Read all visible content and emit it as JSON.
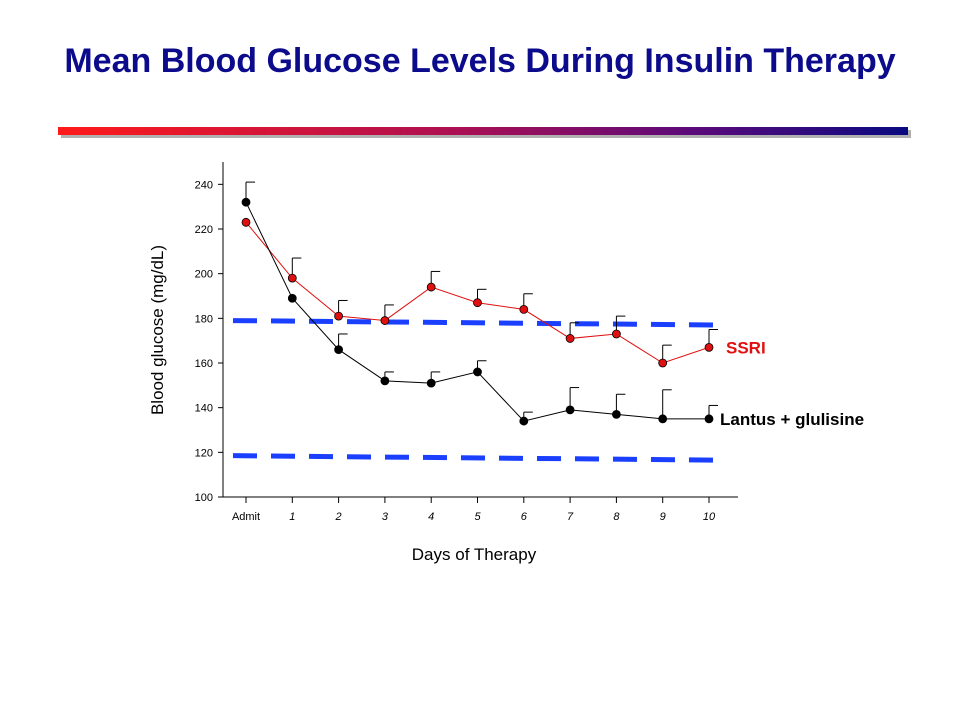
{
  "slide": {
    "title": "Mean Blood Glucose Levels During Insulin Therapy"
  },
  "chart_data": {
    "type": "line",
    "title": "",
    "xlabel": "Days of Therapy",
    "ylabel": "Blood glucose (mg/dL)",
    "ylim": [
      100,
      250
    ],
    "yticks": [
      100,
      120,
      140,
      160,
      180,
      200,
      220,
      240
    ],
    "categories": [
      "Admit",
      "1",
      "2",
      "3",
      "4",
      "5",
      "6",
      "7",
      "8",
      "9",
      "10"
    ],
    "grid": false,
    "series": [
      {
        "name": "SSRI",
        "color": "#e01010",
        "marker_color": "#e01010",
        "x_index": [
          0,
          1,
          2,
          3,
          4,
          5,
          6,
          7,
          8,
          9,
          10
        ],
        "values": [
          223,
          198,
          181,
          179,
          194,
          187,
          184,
          171,
          173,
          160,
          167
        ],
        "error_upper": [
          null,
          207,
          188,
          186,
          201,
          193,
          191,
          178,
          181,
          168,
          175
        ]
      },
      {
        "name": "Lantus + glulisine",
        "color": "#000000",
        "marker_color": "#000000",
        "x_index": [
          0,
          1,
          2,
          3,
          4,
          5,
          6,
          7,
          8,
          9,
          10
        ],
        "values": [
          232,
          189,
          166,
          152,
          151,
          156,
          134,
          139,
          137,
          135,
          135
        ],
        "error_upper": [
          241,
          null,
          173,
          156,
          156,
          161,
          138,
          149,
          146,
          148,
          141
        ]
      }
    ],
    "reference_lines": [
      {
        "y_start": 179,
        "y_end": 177,
        "color": "#1a3fff",
        "style": "dashed"
      },
      {
        "y_start": 118.5,
        "y_end": 116.5,
        "color": "#1a3fff",
        "style": "dashed"
      }
    ]
  }
}
